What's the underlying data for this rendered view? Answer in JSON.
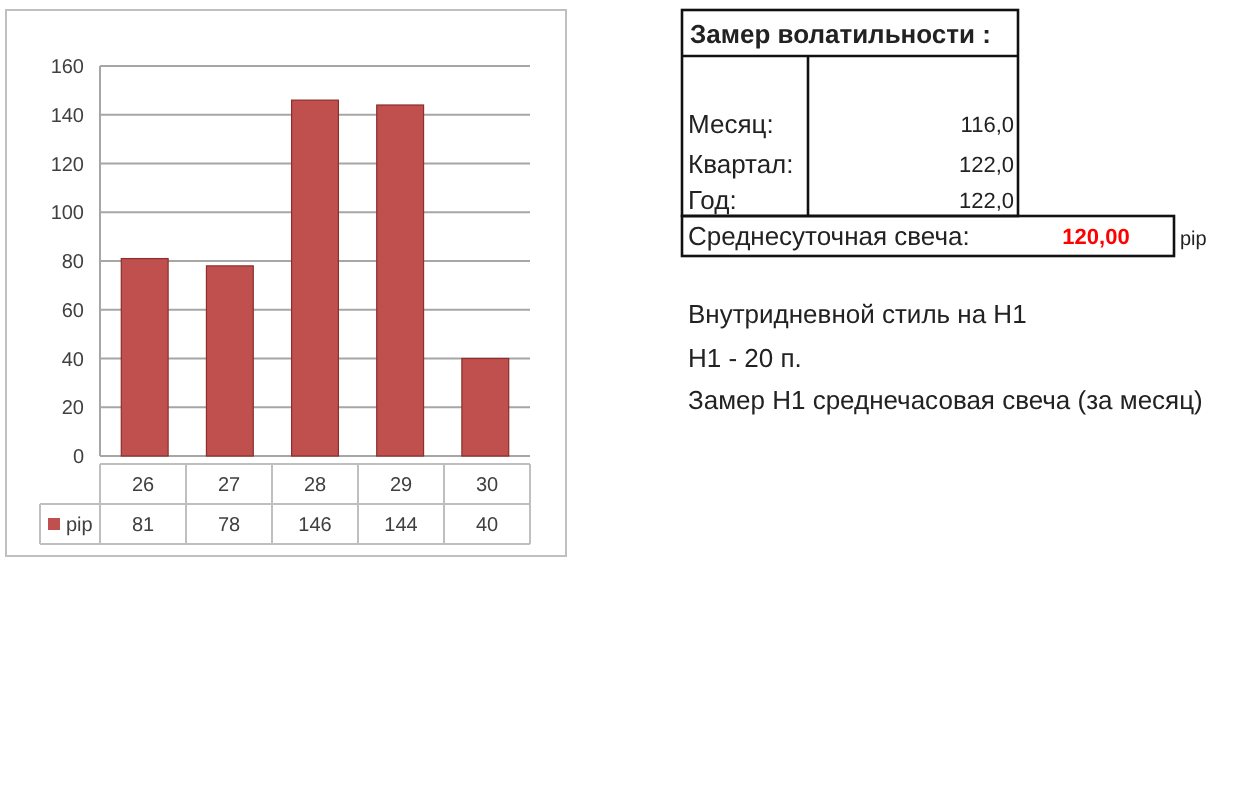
{
  "chart_data": [
    {
      "type": "bar",
      "categories": [
        "26",
        "27",
        "28",
        "29",
        "30"
      ],
      "series": [
        {
          "name": "pip",
          "color": "#c0504d",
          "values": [
            81,
            78,
            146,
            144,
            40
          ]
        }
      ],
      "ylim": [
        0,
        160
      ],
      "yticks": [
        0,
        20,
        40,
        60,
        80,
        100,
        120,
        140,
        160
      ],
      "grid": "y",
      "data_labels": true,
      "legend": "bottom left"
    },
    {
      "type": "other",
      "title": "Замер  волатильности  :",
      "annotations": [
        "Месяц:",
        "116,0",
        "Квартал:",
        "122,0",
        "Год:",
        "122,0",
        "Среднесуточная свеча:",
        "120,00",
        "pip",
        "Внутридневной стиль на H1",
        "H1 - 20 п.",
        "Замер H1 среднечасовая свеча (за месяц)"
      ]
    }
  ]
}
